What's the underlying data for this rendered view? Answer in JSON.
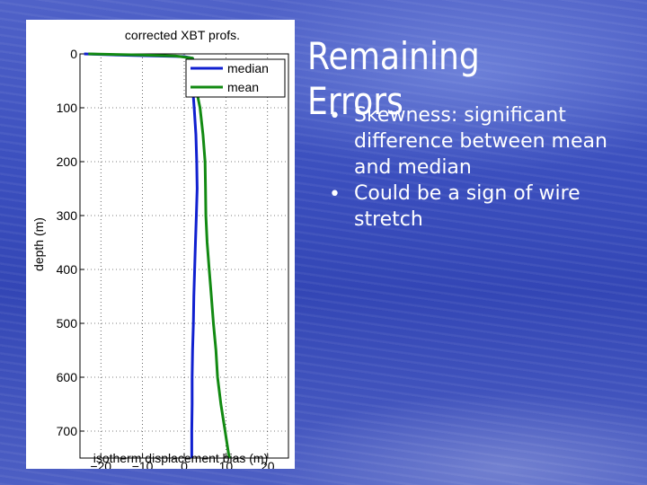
{
  "slide": {
    "title": "Remaining Errors",
    "bullets": [
      "Skewness: significant difference between mean and median",
      "Could be a sign of wire stretch"
    ],
    "bullet_symbol": "•"
  },
  "colors": {
    "median": "#1020d0",
    "mean": "#128a12",
    "text": "#ffffff"
  },
  "chart_data": {
    "type": "line",
    "title": "corrected XBT profs.",
    "xlabel": "isotherm displacement bias (m)",
    "ylabel": "depth (m)",
    "xlim": [
      -25,
      25
    ],
    "ylim": [
      0,
      750
    ],
    "y_inverted": true,
    "grid": true,
    "legend_position": "top-right",
    "xticks": [
      -20,
      -10,
      0,
      10,
      20
    ],
    "yticks": [
      0,
      100,
      200,
      300,
      400,
      500,
      600,
      700
    ],
    "xtick_labels": [
      "−20",
      "−10",
      "0",
      "10",
      "20"
    ],
    "ytick_labels": [
      "0",
      "100",
      "200",
      "300",
      "400",
      "500",
      "600",
      "700"
    ],
    "series": [
      {
        "name": "median",
        "color": "#1020d0",
        "points": [
          [
            -24,
            0
          ],
          [
            -12,
            3
          ],
          [
            0,
            5
          ],
          [
            2,
            8
          ],
          [
            2,
            20
          ],
          [
            2,
            60
          ],
          [
            2.4,
            100
          ],
          [
            2.8,
            150
          ],
          [
            3.0,
            200
          ],
          [
            3.1,
            250
          ],
          [
            2.9,
            300
          ],
          [
            2.7,
            350
          ],
          [
            2.5,
            400
          ],
          [
            2.3,
            450
          ],
          [
            2.2,
            500
          ],
          [
            2.0,
            550
          ],
          [
            1.9,
            600
          ],
          [
            1.9,
            650
          ],
          [
            1.8,
            700
          ],
          [
            1.8,
            750
          ]
        ]
      },
      {
        "name": "mean",
        "color": "#128a12",
        "points": [
          [
            -23,
            0
          ],
          [
            -10,
            2
          ],
          [
            -2,
            4
          ],
          [
            2,
            8
          ],
          [
            2.5,
            30
          ],
          [
            3,
            70
          ],
          [
            3.8,
            100
          ],
          [
            4.5,
            150
          ],
          [
            5.0,
            200
          ],
          [
            5.1,
            250
          ],
          [
            5.2,
            300
          ],
          [
            5.5,
            350
          ],
          [
            6.0,
            400
          ],
          [
            6.5,
            450
          ],
          [
            7.0,
            500
          ],
          [
            7.6,
            550
          ],
          [
            8.0,
            600
          ],
          [
            8.8,
            650
          ],
          [
            9.8,
            700
          ],
          [
            10.8,
            750
          ]
        ]
      }
    ]
  }
}
